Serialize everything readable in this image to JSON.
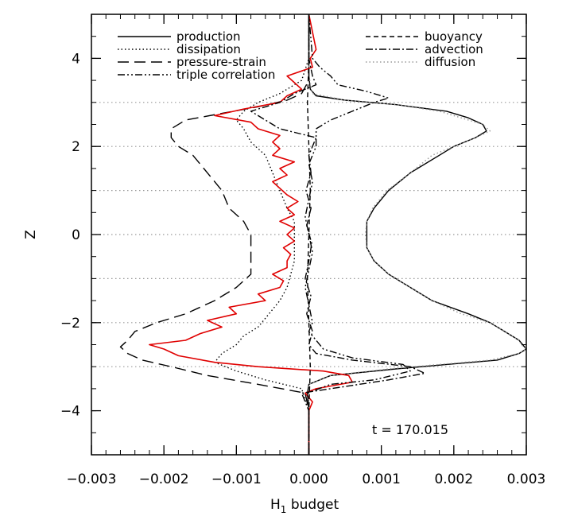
{
  "chart_data": {
    "type": "line",
    "title": "",
    "xlabel": "H",
    "xlabel_subscript": "1",
    "xlabel_suffix": " budget",
    "ylabel": "Z",
    "xlim": [
      -0.003,
      0.003
    ],
    "ylim": [
      -5,
      5
    ],
    "x_ticks": [
      -0.003,
      -0.002,
      -0.001,
      0.0,
      0.001,
      0.002,
      0.003
    ],
    "x_tick_labels": [
      "−0.003",
      "−0.002",
      "−0.001",
      "0.000",
      "0.001",
      "0.002",
      "0.003"
    ],
    "y_ticks": [
      -4,
      -2,
      0,
      2,
      4
    ],
    "y_tick_labels": [
      "−4",
      "−2",
      "0",
      "2",
      "4"
    ],
    "grid": "dotted horizontal lines at z = ±1, ±2, ±3, 0",
    "grid_lines_y": [
      -3,
      -2,
      -1,
      0,
      1,
      2,
      3
    ],
    "annotation": "t  =  170.015",
    "legend": [
      {
        "name": "production",
        "style": "solid",
        "color": "#000000",
        "column": "left"
      },
      {
        "name": "dissipation",
        "style": "dotted",
        "color": "#000000",
        "column": "left"
      },
      {
        "name": "pressure-strain",
        "style": "long-dash",
        "color": "#000000",
        "column": "left"
      },
      {
        "name": "triple correlation",
        "style": "dash-dot-dot",
        "color": "#000000",
        "column": "left"
      },
      {
        "name": "buoyancy",
        "style": "short-dash",
        "color": "#000000",
        "column": "right"
      },
      {
        "name": "advection",
        "style": "dash-dot",
        "color": "#000000",
        "column": "right"
      },
      {
        "name": "diffusion",
        "style": "dotted",
        "color": "#999999",
        "column": "right"
      }
    ],
    "series": [
      {
        "name": "production",
        "style": "solid",
        "color": "#000000",
        "z": [
          -5.0,
          -4.0,
          -3.6,
          -3.4,
          -3.2,
          -3.05,
          -2.95,
          -2.85,
          -2.7,
          -2.6,
          -2.5,
          -2.4,
          -2.2,
          -2.0,
          -1.8,
          -1.5,
          -1.2,
          -0.9,
          -0.6,
          -0.3,
          0.0,
          0.3,
          0.6,
          1.0,
          1.4,
          1.8,
          2.0,
          2.2,
          2.35,
          2.5,
          2.65,
          2.8,
          2.95,
          3.05,
          3.15,
          3.3,
          3.6,
          4.0,
          5.0
        ],
        "x": [
          0.0,
          0.0,
          -2e-05,
          0.0,
          0.0003,
          0.0012,
          0.0019,
          0.0026,
          0.0029,
          0.003,
          0.00295,
          0.0029,
          0.0027,
          0.0025,
          0.0022,
          0.0017,
          0.0014,
          0.0011,
          0.0009,
          0.0008,
          0.0008,
          0.0008,
          0.0009,
          0.0011,
          0.0014,
          0.0018,
          0.002,
          0.0023,
          0.00245,
          0.0024,
          0.0022,
          0.0019,
          0.0012,
          0.0005,
          0.0001,
          2e-05,
          0.0,
          0.0,
          0.0
        ]
      },
      {
        "name": "diffusion",
        "style": "dotted",
        "color": "#999999",
        "z": [
          -5.0,
          -4.0,
          -3.4,
          -3.2,
          -3.05,
          -2.95,
          -2.85,
          -2.7,
          -2.6,
          -2.5,
          -2.4,
          -2.2,
          -2.0,
          -1.8,
          -1.5,
          -1.2,
          -0.9,
          -0.6,
          -0.3,
          0.0,
          0.3,
          0.6,
          1.0,
          1.4,
          1.8,
          2.0,
          2.2,
          2.35,
          2.5,
          2.65,
          2.8,
          2.95,
          3.05,
          3.2,
          3.6,
          4.0,
          5.0
        ],
        "x": [
          0.0,
          0.0,
          0.0,
          0.0003,
          0.0011,
          0.0018,
          0.0025,
          0.0029,
          0.003,
          0.00293,
          0.0029,
          0.0027,
          0.0025,
          0.0021,
          0.0017,
          0.0014,
          0.0011,
          0.0009,
          0.0008,
          0.00078,
          0.0008,
          0.00088,
          0.00108,
          0.0014,
          0.0017,
          0.002,
          0.0023,
          0.0025,
          0.0024,
          0.0021,
          0.0018,
          0.0012,
          0.0005,
          5e-05,
          0.0,
          0.0,
          0.0
        ]
      },
      {
        "name": "pressure-strain",
        "style": "long-dash",
        "color": "#000000",
        "z": [
          -5.0,
          -4.0,
          -3.6,
          -3.4,
          -3.2,
          -3.0,
          -2.85,
          -2.7,
          -2.55,
          -2.4,
          -2.2,
          -2.0,
          -1.8,
          -1.5,
          -1.2,
          -0.9,
          -0.6,
          -0.3,
          0.0,
          0.3,
          0.6,
          1.0,
          1.4,
          1.8,
          2.0,
          2.2,
          2.4,
          2.6,
          2.75,
          2.9,
          3.05,
          3.2,
          3.5,
          4.0,
          5.0
        ],
        "x": [
          0.0,
          0.0,
          -5e-05,
          -0.0007,
          -0.0014,
          -0.0019,
          -0.0023,
          -0.0025,
          -0.0026,
          -0.0025,
          -0.0024,
          -0.0021,
          -0.0017,
          -0.0013,
          -0.001,
          -0.0008,
          -0.0008,
          -0.0008,
          -0.0008,
          -0.0009,
          -0.0011,
          -0.0012,
          -0.0014,
          -0.0016,
          -0.0018,
          -0.0019,
          -0.0019,
          -0.0017,
          -0.0012,
          -0.0007,
          -0.0003,
          -0.0001,
          0.0,
          0.0,
          0.0
        ]
      },
      {
        "name": "dissipation",
        "style": "dotted",
        "color": "#000000",
        "z": [
          -5.0,
          -4.0,
          -3.5,
          -3.3,
          -3.1,
          -2.9,
          -2.7,
          -2.5,
          -2.3,
          -2.1,
          -1.9,
          -1.7,
          -1.5,
          -1.2,
          -0.9,
          -0.6,
          -0.3,
          0.0,
          0.3,
          0.6,
          1.0,
          1.4,
          1.8,
          2.1,
          2.4,
          2.6,
          2.8,
          3.0,
          3.2,
          3.5,
          4.0,
          5.0
        ],
        "x": [
          0.0,
          0.0,
          -0.0001,
          -0.0006,
          -0.001,
          -0.0013,
          -0.0012,
          -0.001,
          -0.0009,
          -0.0007,
          -0.0006,
          -0.0005,
          -0.0004,
          -0.0003,
          -0.00025,
          -0.0002,
          -0.0002,
          -0.0002,
          -0.0002,
          -0.0003,
          -0.0004,
          -0.0005,
          -0.0006,
          -0.0008,
          -0.0009,
          -0.001,
          -0.0009,
          -0.0007,
          -0.0004,
          -0.0001,
          0.0,
          0.0
        ]
      },
      {
        "name": "red curve",
        "style": "solid",
        "color": "#e00000",
        "z": [
          -5.0,
          -4.0,
          -3.8,
          -3.6,
          -3.5,
          -3.35,
          -3.2,
          -3.1,
          -3.0,
          -2.9,
          -2.75,
          -2.6,
          -2.5,
          -2.4,
          -2.25,
          -2.1,
          -1.95,
          -1.8,
          -1.65,
          -1.5,
          -1.35,
          -1.2,
          -1.05,
          -0.9,
          -0.75,
          -0.6,
          -0.45,
          -0.3,
          -0.15,
          0.0,
          0.15,
          0.3,
          0.45,
          0.6,
          0.75,
          0.9,
          1.05,
          1.2,
          1.35,
          1.5,
          1.65,
          1.8,
          1.95,
          2.1,
          2.25,
          2.4,
          2.55,
          2.7,
          2.85,
          3.0,
          3.15,
          3.3,
          3.45,
          3.6,
          3.8,
          4.0,
          4.2,
          5.0
        ],
        "x": [
          0.0,
          0.0,
          5e-05,
          -5e-05,
          0.0001,
          0.0006,
          0.00055,
          0.0002,
          -0.0007,
          -0.0013,
          -0.0018,
          -0.002,
          -0.0022,
          -0.0017,
          -0.0015,
          -0.0012,
          -0.0014,
          -0.001,
          -0.0011,
          -0.0006,
          -0.0007,
          -0.0004,
          -0.00035,
          -0.0005,
          -0.0003,
          -0.0003,
          -0.00025,
          -0.00035,
          -0.0002,
          -0.0003,
          -0.0002,
          -0.0004,
          -0.0002,
          -0.0003,
          -0.00015,
          -0.0003,
          -0.0004,
          -0.0005,
          -0.0003,
          -0.0004,
          -0.0002,
          -0.0005,
          -0.0004,
          -0.0005,
          -0.0004,
          -0.0007,
          -0.0008,
          -0.0013,
          -0.0009,
          -0.0004,
          -0.0003,
          -0.0001,
          -0.0002,
          -0.0003,
          5e-05,
          2e-05,
          0.0001,
          0.0
        ]
      },
      {
        "name": "triple correlation",
        "style": "dash-dot-dot",
        "color": "#000000",
        "z": [
          -5.0,
          -4.0,
          -3.6,
          -3.4,
          -3.3,
          -3.1,
          -2.95,
          -2.8,
          -2.6,
          -2.4,
          -2.2,
          -2.0,
          -1.6,
          -1.2,
          -0.8,
          -0.4,
          0.0,
          0.4,
          0.8,
          1.2,
          1.6,
          2.0,
          2.4,
          2.6,
          2.8,
          3.0,
          3.1,
          3.25,
          3.4,
          3.6,
          3.8,
          4.0,
          5.0
        ],
        "x": [
          0.0,
          0.0,
          -2e-05,
          0.0003,
          0.0009,
          0.0014,
          0.0013,
          0.0006,
          0.0002,
          0.0001,
          0.0,
          5e-05,
          0.0,
          -5e-05,
          0.0,
          5e-05,
          0.0,
          -5e-05,
          0.0,
          5e-05,
          0.0,
          0.0001,
          0.0001,
          0.0003,
          0.0006,
          0.0009,
          0.0011,
          0.0008,
          0.0004,
          0.0003,
          0.00015,
          5e-05,
          0.0
        ]
      },
      {
        "name": "advection",
        "style": "dash-dot",
        "color": "#000000",
        "z": [
          -5.0,
          -4.0,
          -3.6,
          -3.5,
          -3.3,
          -3.15,
          -3.0,
          -2.85,
          -2.7,
          -2.5,
          -2.2,
          -1.8,
          -1.4,
          -1.0,
          -0.6,
          -0.2,
          0.2,
          0.6,
          1.0,
          1.4,
          1.8,
          2.2,
          2.4,
          2.6,
          2.8,
          3.0,
          3.2,
          3.4,
          3.6,
          4.0,
          5.0
        ],
        "x": [
          0.0,
          0.0,
          -0.0001,
          0.0003,
          0.0011,
          0.0016,
          0.0014,
          0.0006,
          0.0001,
          0.0,
          5e-05,
          -3e-05,
          3e-05,
          -5e-05,
          0.0,
          4e-05,
          -3e-05,
          3e-05,
          -4e-05,
          3e-05,
          0.0,
          0.0001,
          -0.0004,
          -0.0006,
          -0.0008,
          -0.0004,
          -0.0002,
          0.0001,
          5e-05,
          0.0,
          0.0
        ]
      },
      {
        "name": "buoyancy",
        "style": "short-dash",
        "color": "#000000",
        "z": [
          -5.0,
          -4.0,
          -3.0,
          -2.0,
          -1.0,
          0.0,
          1.0,
          2.0,
          3.0,
          4.0,
          5.0
        ],
        "x": [
          0.0,
          0.0,
          2e-05,
          0.0,
          -2e-05,
          0.0,
          2e-05,
          0.0,
          -2e-05,
          0.0,
          0.0
        ]
      }
    ]
  }
}
